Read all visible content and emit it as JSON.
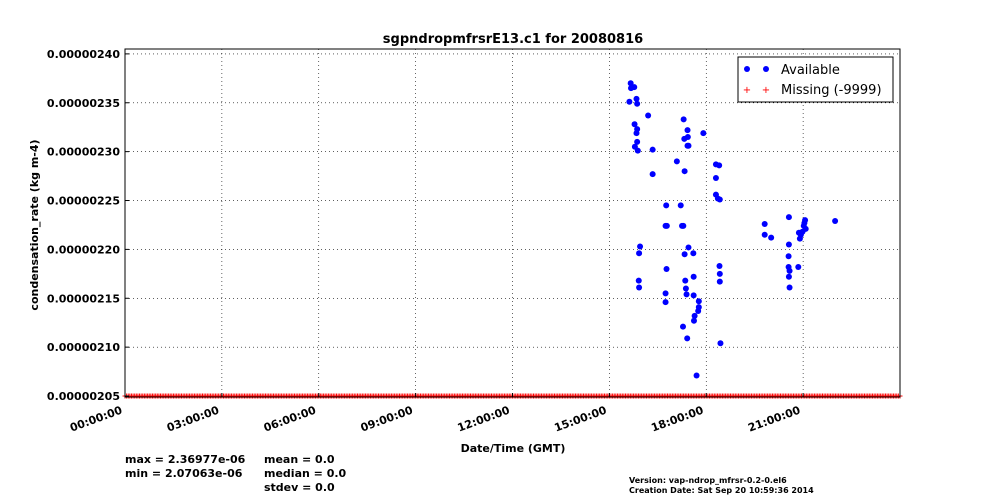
{
  "chart_data": {
    "type": "scatter",
    "title": "sgpndropmfrsrE13.c1 for 20080816",
    "xlabel": "Date/Time (GMT)",
    "ylabel": "condensation_rate (kg m-4)",
    "xlim": [
      0,
      24
    ],
    "ylim": [
      2.049e-06,
      2.405e-06
    ],
    "x_ticks": [
      0,
      3,
      6,
      9,
      12,
      15,
      18,
      21
    ],
    "x_tick_labels": [
      "00:00:00",
      "03:00:00",
      "06:00:00",
      "09:00:00",
      "12:00:00",
      "15:00:00",
      "18:00:00",
      "21:00:00"
    ],
    "y_ticks": [
      2.05e-06,
      2.1e-06,
      2.15e-06,
      2.2e-06,
      2.25e-06,
      2.3e-06,
      2.35e-06,
      2.4e-06
    ],
    "y_tick_labels": [
      "0.00000205",
      "0.00000210",
      "0.00000215",
      "0.00000220",
      "0.00000225",
      "0.00000230",
      "0.00000235",
      "0.00000240"
    ],
    "grid": true,
    "legend_position": "top-right",
    "series": [
      {
        "name": "Available",
        "color": "#0000ff",
        "marker": "circle",
        "points": [
          [
            15.66,
            2.37e-06
          ],
          [
            15.67,
            2.365e-06
          ],
          [
            15.77,
            2.366e-06
          ],
          [
            15.62,
            2.351e-06
          ],
          [
            15.84,
            2.354e-06
          ],
          [
            15.86,
            2.349e-06
          ],
          [
            15.78,
            2.328e-06
          ],
          [
            15.84,
            2.319e-06
          ],
          [
            15.86,
            2.323e-06
          ],
          [
            15.79,
            2.305e-06
          ],
          [
            15.86,
            2.31e-06
          ],
          [
            15.88,
            2.301e-06
          ],
          [
            16.2,
            2.337e-06
          ],
          [
            16.34,
            2.302e-06
          ],
          [
            16.34,
            2.277e-06
          ],
          [
            15.95,
            2.203e-06
          ],
          [
            15.92,
            2.196e-06
          ],
          [
            15.91,
            2.168e-06
          ],
          [
            15.92,
            2.161e-06
          ],
          [
            16.76,
            2.245e-06
          ],
          [
            16.74,
            2.224e-06
          ],
          [
            16.78,
            2.224e-06
          ],
          [
            16.77,
            2.18e-06
          ],
          [
            16.74,
            2.155e-06
          ],
          [
            16.74,
            2.146e-06
          ],
          [
            17.09,
            2.29e-06
          ],
          [
            17.21,
            2.245e-06
          ],
          [
            17.3,
            2.333e-06
          ],
          [
            17.32,
            2.313e-06
          ],
          [
            17.42,
            2.322e-06
          ],
          [
            17.43,
            2.315e-06
          ],
          [
            17.45,
            2.306e-06
          ],
          [
            17.42,
            2.306e-06
          ],
          [
            17.33,
            2.28e-06
          ],
          [
            17.25,
            2.224e-06
          ],
          [
            17.29,
            2.224e-06
          ],
          [
            17.33,
            2.195e-06
          ],
          [
            17.45,
            2.202e-06
          ],
          [
            17.6,
            2.196e-06
          ],
          [
            17.61,
            2.172e-06
          ],
          [
            17.35,
            2.168e-06
          ],
          [
            17.37,
            2.16e-06
          ],
          [
            17.39,
            2.154e-06
          ],
          [
            17.61,
            2.153e-06
          ],
          [
            17.77,
            2.147e-06
          ],
          [
            17.77,
            2.141e-06
          ],
          [
            17.75,
            2.137e-06
          ],
          [
            17.64,
            2.132e-06
          ],
          [
            17.62,
            2.127e-06
          ],
          [
            17.28,
            2.121e-06
          ],
          [
            17.41,
            2.109e-06
          ],
          [
            17.7,
            2.071e-06
          ],
          [
            17.91,
            2.319e-06
          ],
          [
            18.3,
            2.287e-06
          ],
          [
            18.4,
            2.286e-06
          ],
          [
            18.3,
            2.273e-06
          ],
          [
            18.3,
            2.256e-06
          ],
          [
            18.36,
            2.252e-06
          ],
          [
            18.42,
            2.251e-06
          ],
          [
            18.41,
            2.183e-06
          ],
          [
            18.42,
            2.175e-06
          ],
          [
            18.42,
            2.167e-06
          ],
          [
            18.44,
            2.104e-06
          ],
          [
            19.81,
            2.226e-06
          ],
          [
            19.81,
            2.215e-06
          ],
          [
            20.01,
            2.212e-06
          ],
          [
            20.56,
            2.233e-06
          ],
          [
            20.56,
            2.205e-06
          ],
          [
            20.55,
            2.193e-06
          ],
          [
            20.55,
            2.182e-06
          ],
          [
            20.58,
            2.178e-06
          ],
          [
            20.56,
            2.172e-06
          ],
          [
            20.58,
            2.161e-06
          ],
          [
            20.85,
            2.182e-06
          ],
          [
            20.87,
            2.217e-06
          ],
          [
            20.9,
            2.211e-06
          ],
          [
            20.93,
            2.215e-06
          ],
          [
            20.98,
            2.218e-06
          ],
          [
            21.02,
            2.224e-06
          ],
          [
            21.06,
            2.23e-06
          ],
          [
            21.04,
            2.227e-06
          ],
          [
            21.08,
            2.221e-06
          ],
          [
            21.99,
            2.229e-06
          ]
        ]
      },
      {
        "name": "Missing (-9999)",
        "color": "#ff0000",
        "marker": "plus",
        "x_range": [
          0,
          24
        ],
        "y_value": 2.05e-06
      }
    ],
    "stats": {
      "max": "max = 2.36977e-06",
      "min": "min = 2.07063e-06",
      "mean": "mean = 0.0",
      "median": "median = 0.0",
      "stdev": "stdev = 0.0"
    },
    "version": "Version: vap-ndrop_mfrsr-0.2-0.el6",
    "creation_date": "Creation Date: Sat Sep 20 10:59:36 2014"
  }
}
